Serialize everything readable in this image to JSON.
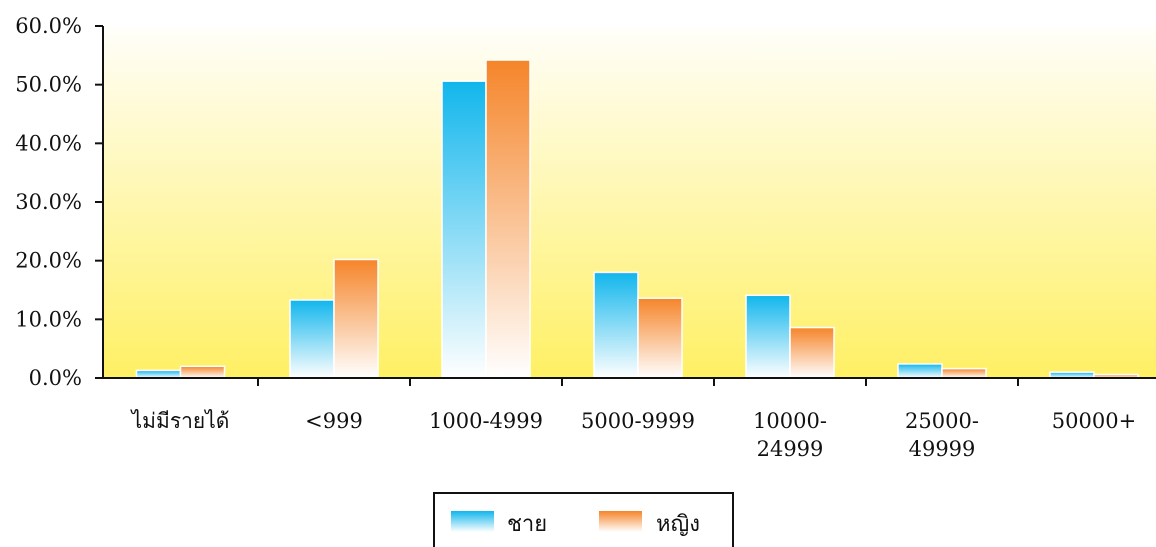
{
  "chart_data": {
    "type": "bar",
    "title": "",
    "xlabel": "",
    "ylabel": "",
    "ylim": [
      0,
      60
    ],
    "y_ticks": [
      "0.0%",
      "10.0%",
      "20.0%",
      "30.0%",
      "40.0%",
      "50.0%",
      "60.0%"
    ],
    "y_tick_values": [
      0,
      10,
      20,
      30,
      40,
      50,
      60
    ],
    "categories": [
      [
        "ไม่มีรายได้"
      ],
      [
        "<999"
      ],
      [
        "1000-4999"
      ],
      [
        "5000-9999"
      ],
      [
        "10000-",
        "24999"
      ],
      [
        "25000-",
        "49999"
      ],
      [
        "50000+"
      ]
    ],
    "series": [
      {
        "name": "ชาย",
        "values": [
          1.3,
          13.3,
          50.6,
          18.0,
          14.1,
          2.4,
          1.0
        ],
        "color": "#11b6ec"
      },
      {
        "name": "หญิง",
        "values": [
          2.0,
          20.2,
          54.2,
          13.6,
          8.6,
          1.6,
          0.6
        ],
        "color": "#f5852a"
      }
    ],
    "grid": false,
    "legend_position": "bottom-center",
    "background_gradient": [
      "#fffefa",
      "#fff064"
    ]
  }
}
